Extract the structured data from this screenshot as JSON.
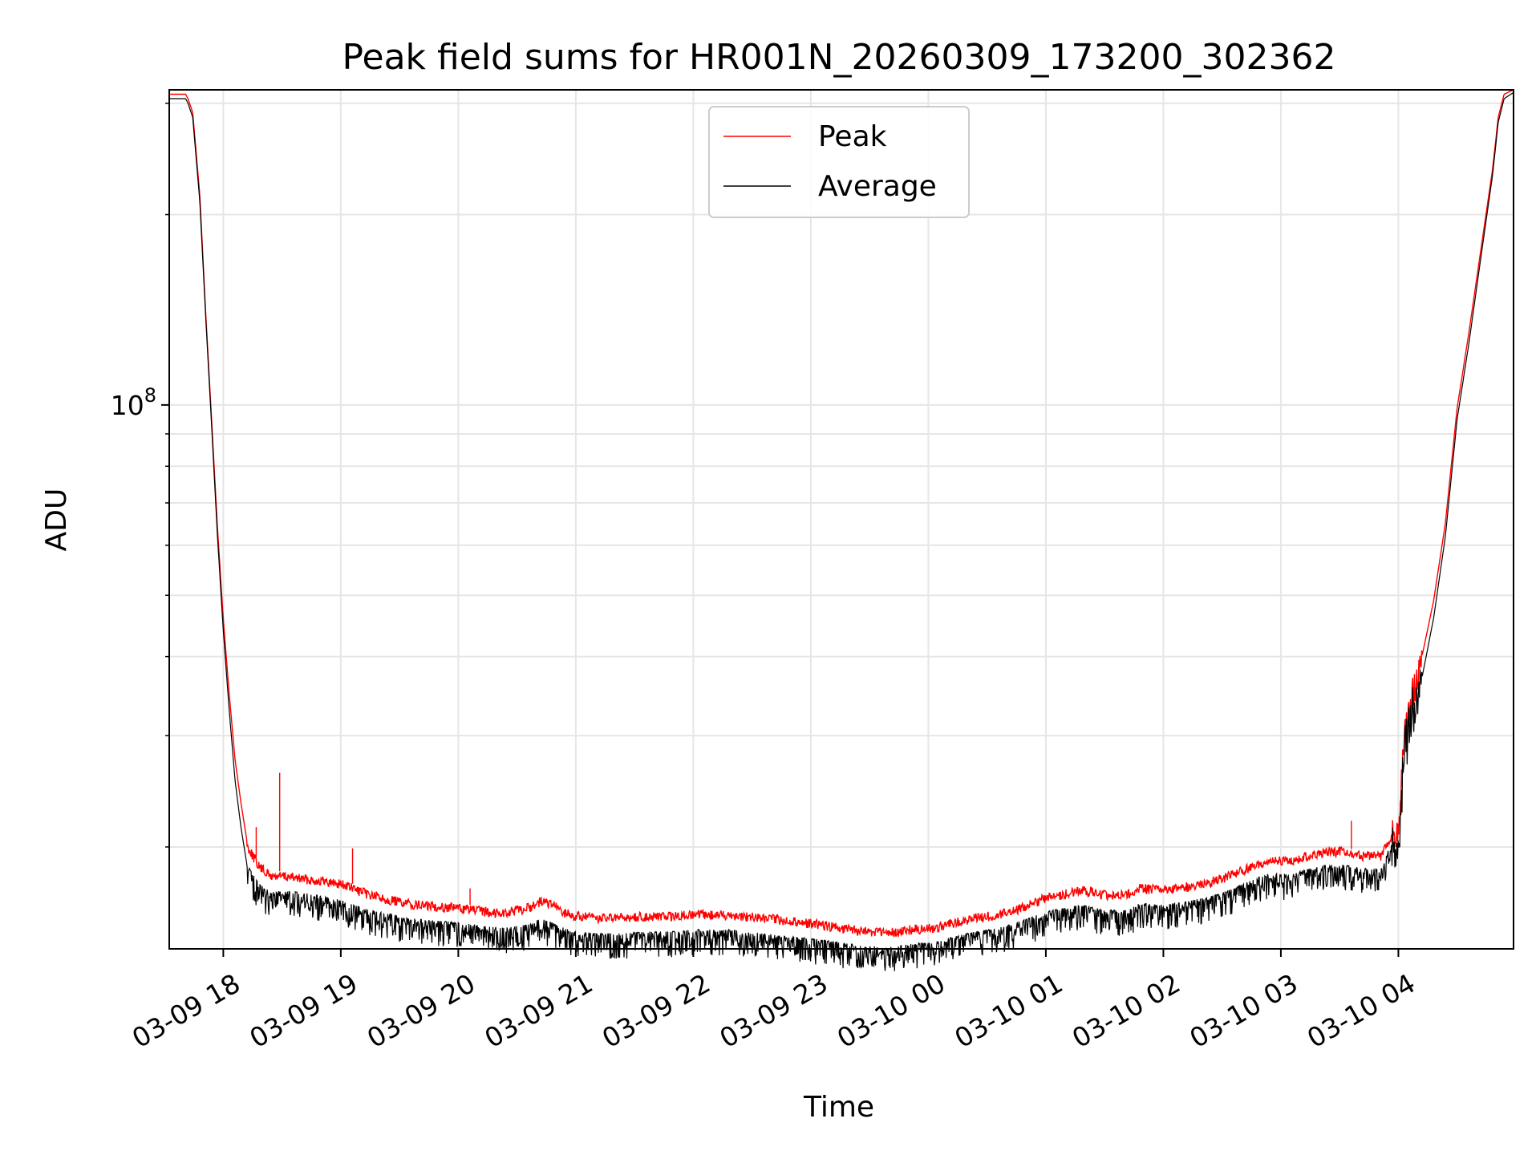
{
  "chart_data": {
    "type": "line",
    "title": "Peak field sums for HR001N_20260309_173200_302362",
    "xlabel": "Time",
    "ylabel": "ADU",
    "yscale": "log",
    "ylim": [
      13800000,
      315000000
    ],
    "xlim_hours": [
      -0.46,
      10.98
    ],
    "x_ticks": [
      {
        "h": 0,
        "label": "03-09 18"
      },
      {
        "h": 1,
        "label": "03-09 19"
      },
      {
        "h": 2,
        "label": "03-09 20"
      },
      {
        "h": 3,
        "label": "03-09 21"
      },
      {
        "h": 4,
        "label": "03-09 22"
      },
      {
        "h": 5,
        "label": "03-09 23"
      },
      {
        "h": 6,
        "label": "03-10 00"
      },
      {
        "h": 7,
        "label": "03-10 01"
      },
      {
        "h": 8,
        "label": "03-10 02"
      },
      {
        "h": 9,
        "label": "03-10 03"
      },
      {
        "h": 10,
        "label": "03-10 04"
      }
    ],
    "y_major_ticks": [
      {
        "value": 100000000,
        "base": "10",
        "exp": "8"
      }
    ],
    "y_minor_ticks": [
      20000000,
      30000000,
      40000000,
      50000000,
      60000000,
      70000000,
      80000000,
      90000000,
      200000000,
      300000000
    ],
    "grid": true,
    "legend_position": "upper-center",
    "series": [
      {
        "name": "Peak",
        "color": "#ff0000",
        "x_hours": [
          -0.46,
          -0.32,
          -0.3,
          -0.26,
          -0.2,
          -0.15,
          -0.1,
          -0.05,
          0.0,
          0.05,
          0.1,
          0.15,
          0.2,
          0.3,
          0.4,
          0.5,
          0.6,
          0.8,
          1.0,
          1.2,
          1.4,
          1.6,
          1.8,
          2.0,
          2.2,
          2.4,
          2.6,
          2.7,
          2.8,
          2.9,
          3.0,
          3.2,
          3.4,
          3.6,
          3.8,
          4.0,
          4.3,
          4.6,
          4.9,
          5.2,
          5.4,
          5.6,
          5.7,
          5.8,
          5.9,
          6.0,
          6.2,
          6.4,
          6.6,
          6.8,
          7.0,
          7.2,
          7.3,
          7.5,
          7.7,
          7.8,
          8.0,
          8.2,
          8.4,
          8.6,
          8.8,
          8.9,
          9.0,
          9.1,
          9.2,
          9.3,
          9.4,
          9.5,
          9.7,
          9.85,
          9.95,
          10.0,
          10.05,
          10.1,
          10.2,
          10.3,
          10.4,
          10.5,
          10.6,
          10.7,
          10.8,
          10.85,
          10.9,
          10.98
        ],
        "values": [
          310000000,
          310000000,
          305000000,
          290000000,
          215000000,
          140000000,
          95000000,
          64000000,
          46000000,
          35000000,
          27500000,
          23500000,
          20500000,
          19000000,
          18300000,
          18300000,
          18200000,
          18000000,
          17800000,
          17200000,
          16800000,
          16500000,
          16400000,
          16300000,
          16100000,
          16000000,
          16300000,
          16700000,
          16500000,
          16000000,
          15800000,
          15700000,
          15700000,
          15800000,
          15800000,
          15900000,
          15900000,
          15700000,
          15500000,
          15200000,
          15000000,
          14900000,
          14900000,
          15000000,
          15100000,
          15100000,
          15400000,
          15700000,
          15900000,
          16300000,
          16900000,
          17200000,
          17400000,
          17100000,
          17100000,
          17500000,
          17400000,
          17600000,
          17900000,
          18400000,
          19100000,
          19400000,
          19300000,
          19300000,
          19600000,
          19800000,
          20000000,
          20000000,
          19700000,
          19700000,
          21200000,
          21300000,
          30000000,
          34000000,
          40000000,
          49000000,
          65000000,
          99000000,
          130000000,
          175000000,
          235000000,
          285000000,
          310000000,
          315000000
        ],
        "spikes": [
          {
            "h": 0.28,
            "value": 21500000
          },
          {
            "h": 0.48,
            "value": 26200000
          },
          {
            "h": 1.1,
            "value": 19900000
          },
          {
            "h": 2.1,
            "value": 17200000
          },
          {
            "h": 9.6,
            "value": 22000000
          }
        ]
      },
      {
        "name": "Average",
        "color": "#000000",
        "x_hours": [
          -0.46,
          -0.32,
          -0.3,
          -0.26,
          -0.2,
          -0.15,
          -0.1,
          -0.05,
          0.0,
          0.05,
          0.1,
          0.15,
          0.2,
          0.3,
          0.4,
          0.5,
          0.6,
          0.8,
          1.0,
          1.2,
          1.4,
          1.6,
          1.8,
          2.0,
          2.2,
          2.4,
          2.6,
          2.7,
          2.8,
          2.9,
          3.0,
          3.2,
          3.4,
          3.6,
          3.8,
          4.0,
          4.3,
          4.6,
          4.9,
          5.2,
          5.4,
          5.6,
          5.7,
          5.8,
          5.9,
          6.0,
          6.2,
          6.4,
          6.6,
          6.8,
          7.0,
          7.2,
          7.3,
          7.5,
          7.7,
          7.8,
          8.0,
          8.2,
          8.4,
          8.6,
          8.8,
          8.9,
          9.0,
          9.1,
          9.2,
          9.3,
          9.4,
          9.5,
          9.7,
          9.85,
          9.95,
          10.0,
          10.05,
          10.1,
          10.2,
          10.3,
          10.4,
          10.5,
          10.6,
          10.7,
          10.8,
          10.85,
          10.9,
          10.98
        ],
        "values": [
          305000000,
          305000000,
          300000000,
          285000000,
          210000000,
          138000000,
          93000000,
          62000000,
          44000000,
          33000000,
          25500000,
          21500000,
          18800000,
          17500000,
          17000000,
          17000000,
          17000000,
          16800000,
          16500000,
          16000000,
          15700000,
          15400000,
          15300000,
          15200000,
          15000000,
          14900000,
          15100000,
          15400000,
          15200000,
          14900000,
          14700000,
          14600000,
          14600000,
          14700000,
          14700000,
          14800000,
          14800000,
          14600000,
          14400000,
          14200000,
          14000000,
          13900000,
          13900000,
          14000000,
          14100000,
          14100000,
          14400000,
          14700000,
          14900000,
          15300000,
          15800000,
          16100000,
          16200000,
          15900000,
          15900000,
          16300000,
          16200000,
          16400000,
          16700000,
          17200000,
          17900000,
          18200000,
          18100000,
          18100000,
          18400000,
          18600000,
          18800000,
          18800000,
          18500000,
          18500000,
          20500000,
          20800000,
          28000000,
          31000000,
          37000000,
          46000000,
          62000000,
          95000000,
          125000000,
          170000000,
          230000000,
          280000000,
          305000000,
          312000000
        ]
      }
    ]
  }
}
